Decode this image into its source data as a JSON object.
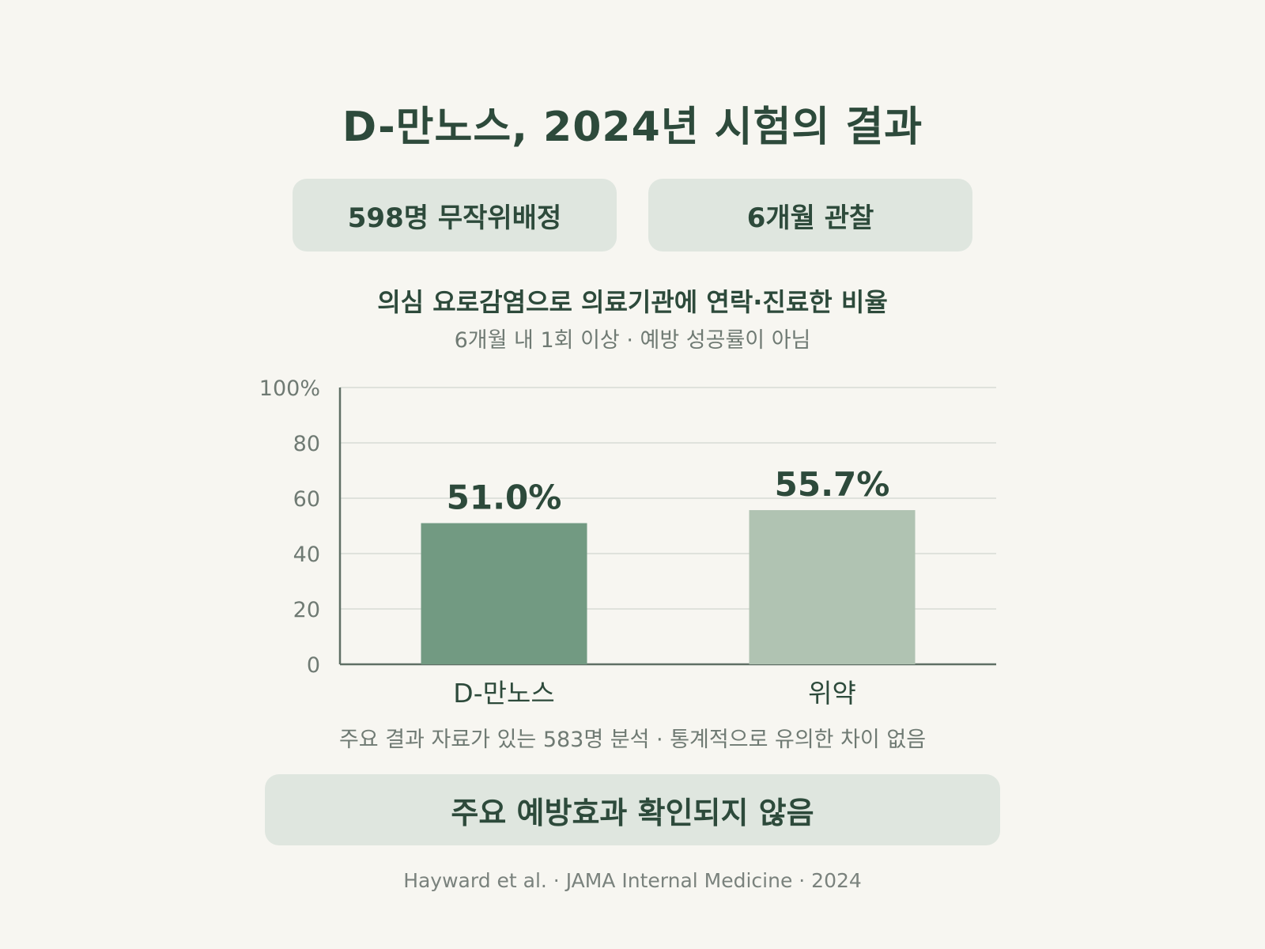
{
  "title": "D-만노스, 2024년 시험의 결과",
  "badges": {
    "left": "598명 무작위배정",
    "right": "6개월 관찰"
  },
  "chart_subtitle": "의심 요로감염으로 의료기관에 연락·진료한 비율",
  "chart_note": "6개월 내 1회 이상 · 예방 성공률이 아님",
  "chart_data": {
    "type": "bar",
    "title": "의심 요로감염으로 의료기관에 연락·진료한 비율",
    "categories": [
      "D-만노스",
      "위약"
    ],
    "values": [
      51.0,
      55.7
    ],
    "value_labels": [
      "51.0%",
      "55.7%"
    ],
    "ylim": [
      0,
      100
    ],
    "yticks": [
      0,
      20,
      40,
      60,
      80,
      100
    ],
    "ytick_labels": [
      "0",
      "20",
      "40",
      "60",
      "80",
      "100%"
    ],
    "colors": [
      "#729a82",
      "#b0c3b2"
    ],
    "grid": true
  },
  "footnote": "주요 결과 자료가 있는 583명 분석 · 통계적으로 유의한 차이 없음",
  "conclusion": "주요 예방효과 확인되지 않음",
  "source": "Hayward et al. · JAMA Internal Medicine · 2024"
}
